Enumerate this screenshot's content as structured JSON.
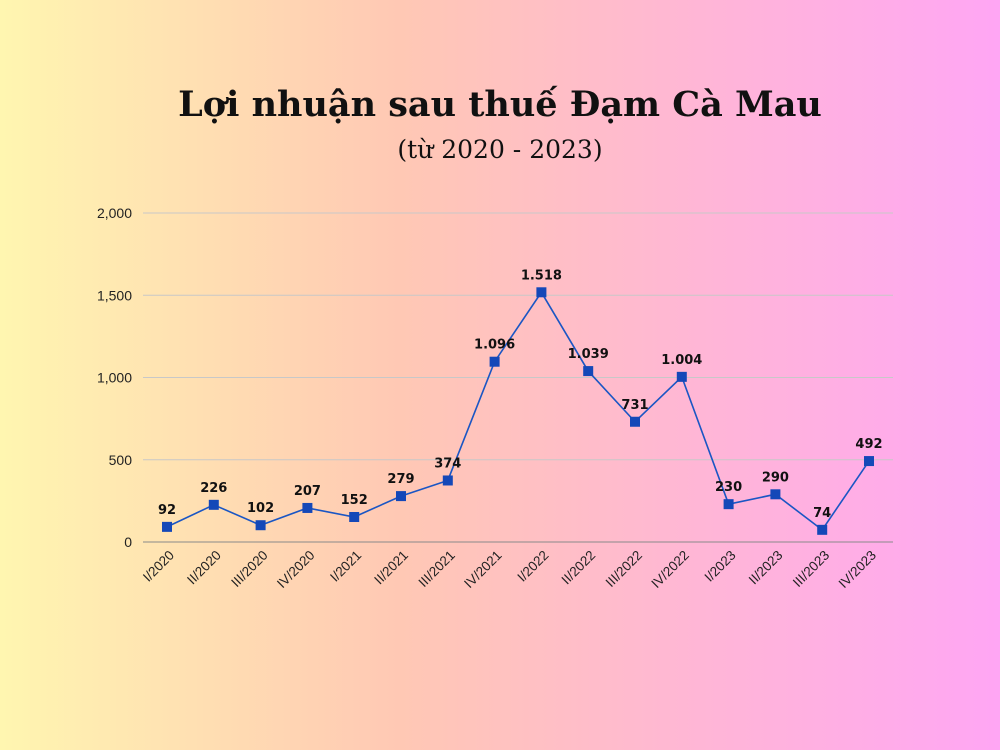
{
  "chart_data": {
    "type": "line",
    "title": "Lợi nhuận sau thuế Đạm Cà Mau",
    "subtitle": "(từ 2020 - 2023)",
    "xlabel": "",
    "ylabel": "",
    "ylim": [
      0,
      2000
    ],
    "yticks": [
      0,
      500,
      1000,
      1500,
      2000
    ],
    "ytick_labels": [
      "0",
      "500",
      "1,000",
      "1,500",
      "2,000"
    ],
    "categories": [
      "I/2020",
      "II/2020",
      "III/2020",
      "IV/2020",
      "I/2021",
      "II/2021",
      "III/2021",
      "IV/2021",
      "I/2022",
      "II/2022",
      "III/2022",
      "IV/2022",
      "I/2023",
      "II/2023",
      "III/2023",
      "IV/2023"
    ],
    "series": [
      {
        "values": [
          92,
          226,
          102,
          207,
          152,
          279,
          374,
          1096,
          1518,
          1039,
          731,
          1004,
          230,
          290,
          74,
          492
        ],
        "data_labels": [
          "92",
          "226",
          "102",
          "207",
          "152",
          "279",
          "374",
          "1.096",
          "1.518",
          "1.039",
          "731",
          "1.004",
          "230",
          "290",
          "74",
          "492"
        ],
        "color": "#1a56c4",
        "marker_color": "#1448b8"
      }
    ],
    "grid": true,
    "gridline_color": "#c8c8c8",
    "legend": "none"
  }
}
